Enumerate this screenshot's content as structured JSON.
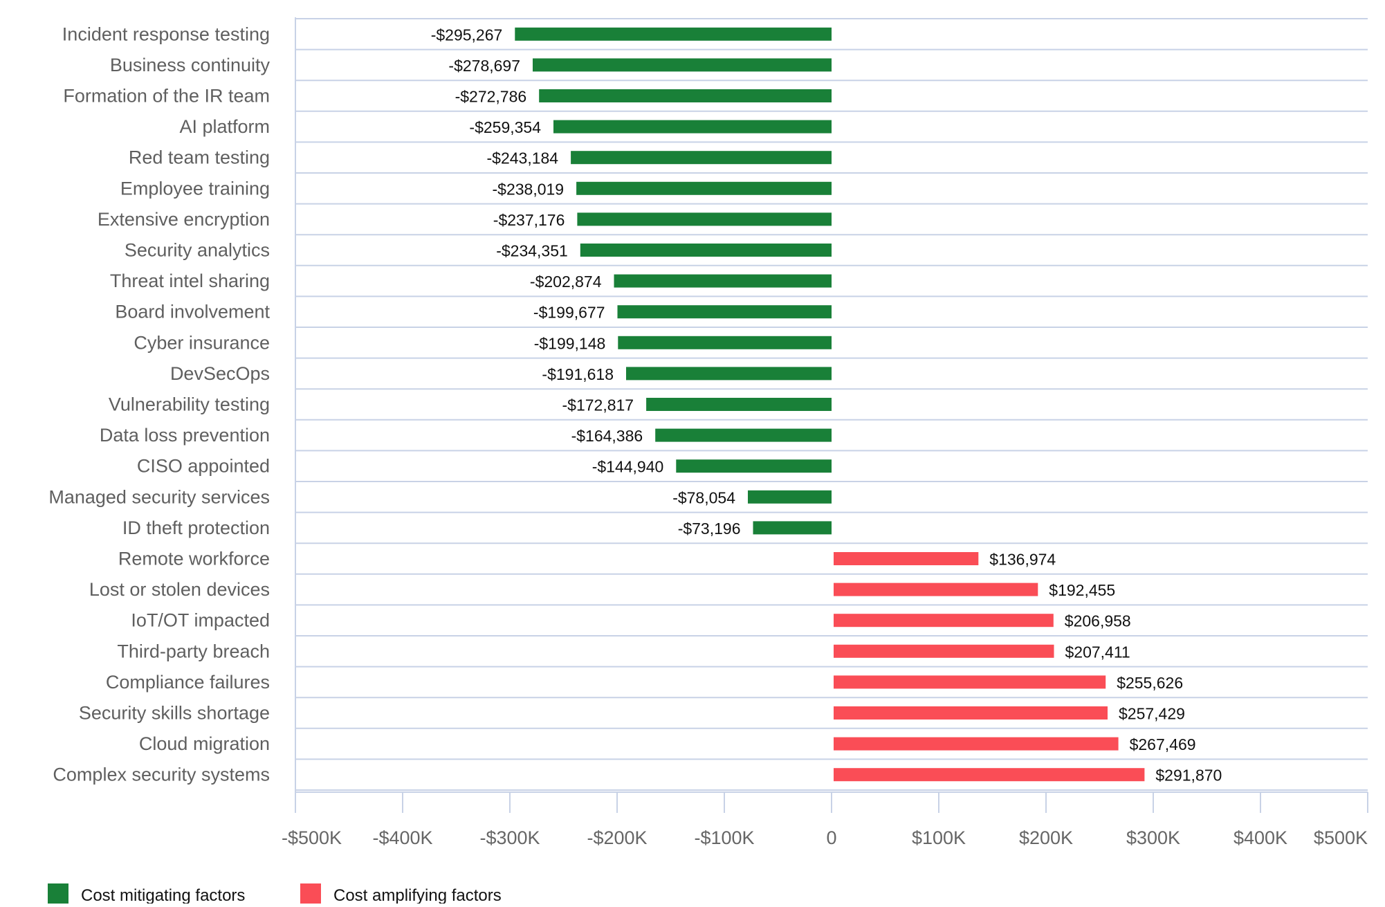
{
  "chart_data": {
    "type": "bar",
    "orientation": "horizontal",
    "categories": [
      "Incident response testing",
      "Business continuity",
      "Formation of the IR team",
      "AI platform",
      "Red team testing",
      "Employee training",
      "Extensive encryption",
      "Security analytics",
      "Threat intel sharing",
      "Board involvement",
      "Cyber insurance",
      "DevSecOps",
      "Vulnerability testing",
      "Data loss prevention",
      "CISO appointed",
      "Managed security services",
      "ID theft protection",
      "Remote workforce",
      "Lost or stolen devices",
      "IoT/OT impacted",
      "Third-party breach",
      "Compliance failures",
      "Security skills shortage",
      "Cloud migration",
      "Complex security systems"
    ],
    "values": [
      -295267,
      -278697,
      -272786,
      -259354,
      -243184,
      -238019,
      -237176,
      -234351,
      -202874,
      -199677,
      -199148,
      -191618,
      -172817,
      -164386,
      -144940,
      -78054,
      -73196,
      136974,
      192455,
      206958,
      207411,
      255626,
      257429,
      267469,
      291870
    ],
    "value_labels": [
      "-$295,267",
      "-$278,697",
      "-$272,786",
      "-$259,354",
      "-$243,184",
      "-$238,019",
      "-$237,176",
      "-$234,351",
      "-$202,874",
      "-$199,677",
      "-$199,148",
      "-$191,618",
      "-$172,817",
      "-$164,386",
      "-$144,940",
      "-$78,054",
      "-$73,196",
      "$136,974",
      "$192,455",
      "$206,958",
      "$207,411",
      "$255,626",
      "$257,429",
      "$267,469",
      "$291,870"
    ],
    "xlim": [
      -500000,
      500000
    ],
    "xticks": [
      -500000,
      -400000,
      -300000,
      -200000,
      -100000,
      0,
      100000,
      200000,
      300000,
      400000,
      500000
    ],
    "xtick_labels": [
      "-$500K",
      "-$400K",
      "-$300K",
      "-$200K",
      "-$100K",
      "0",
      "$100K",
      "$200K",
      "$300K",
      "$400K",
      "$500K"
    ],
    "series": [
      {
        "name": "Cost mitigating factors",
        "color": "#198038",
        "applies_to": "negative"
      },
      {
        "name": "Cost amplifying factors",
        "color": "#fa4d56",
        "applies_to": "positive"
      }
    ],
    "legend_position": "bottom-left",
    "grid": "horizontal row separators",
    "title": "",
    "xlabel": "",
    "ylabel": ""
  }
}
